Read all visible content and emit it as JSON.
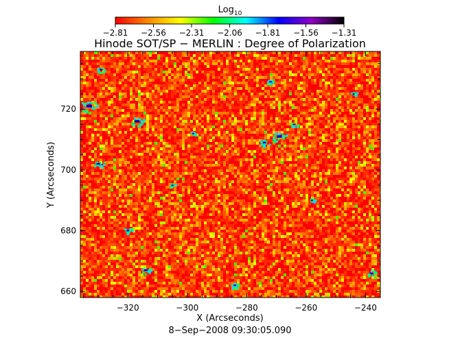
{
  "colorbar": {
    "label_base": "Log",
    "label_sub": "10",
    "ticks": [
      "−2.81",
      "−2.56",
      "−2.31",
      "−2.06",
      "−1.81",
      "−1.56",
      "−1.31"
    ],
    "stops": [
      "#ff0000",
      "#ff8800",
      "#ffff00",
      "#00ff00",
      "#00ffff",
      "#0000ff",
      "#9000c8",
      "#000000"
    ]
  },
  "plot": {
    "title": "Hinode SOT/SP − MERLIN : Degree of Polarization",
    "xlabel": "X (Arcseconds)",
    "ylabel": "Y (Arcseconds)",
    "xlim": [
      -336,
      -235
    ],
    "ylim": [
      658,
      739
    ],
    "xticks": [
      -320,
      -300,
      -280,
      -260,
      -240
    ],
    "yticks": [
      660,
      680,
      700,
      720
    ],
    "xtick_labels": [
      "−320",
      "−300",
      "−280",
      "−260",
      "−240"
    ],
    "ytick_labels": [
      "660",
      "680",
      "700",
      "720"
    ],
    "timestamp": "8−Sep−2008 09:30:05.090"
  }
}
